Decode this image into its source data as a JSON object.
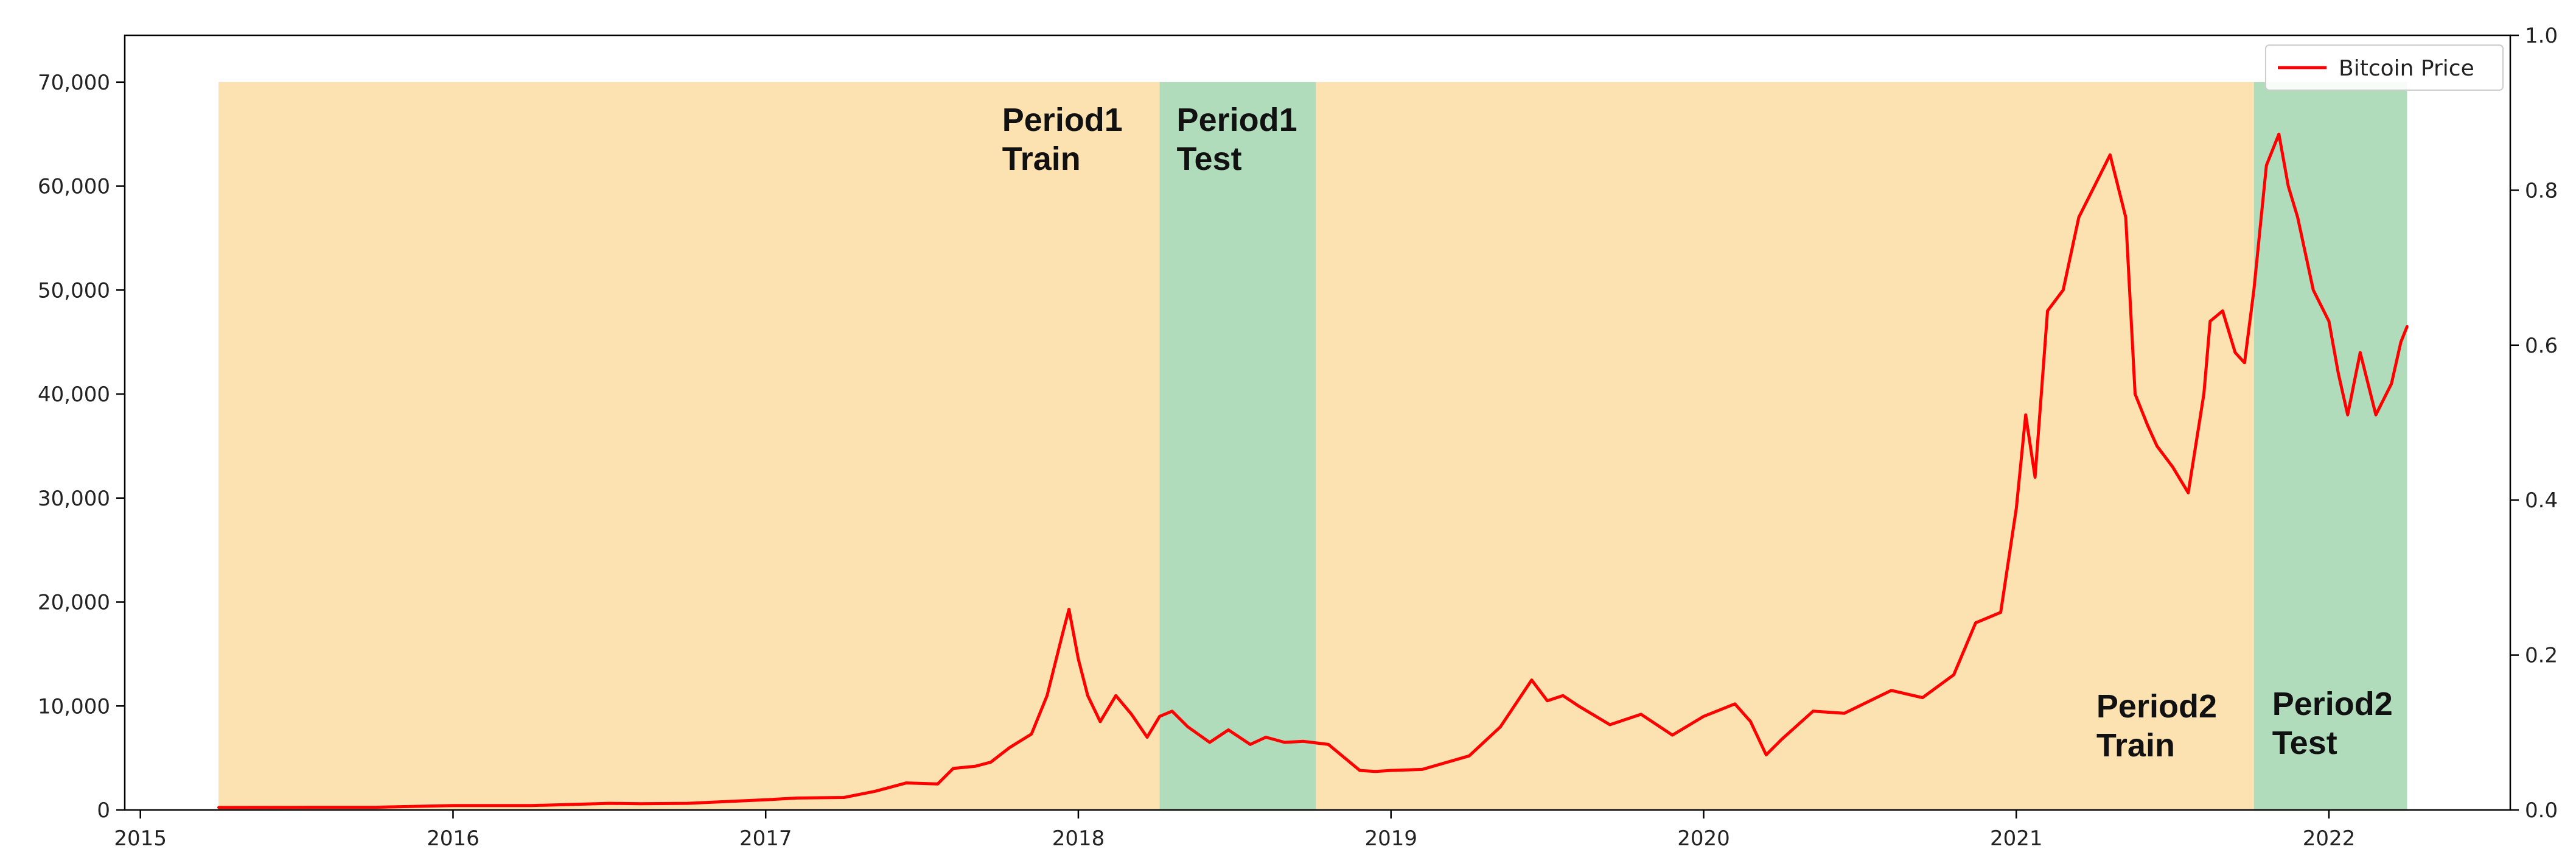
{
  "chart_data": {
    "type": "line",
    "title": "",
    "xlabel": "",
    "ylabel": "",
    "xlim": [
      2014.95,
      2022.58
    ],
    "ylim": [
      0,
      74500
    ],
    "y2lim": [
      0,
      1.0
    ],
    "grid": false,
    "legend": {
      "placement": "top-right",
      "entries": [
        "Bitcoin Price"
      ]
    },
    "colors": {
      "line": "#ff0000",
      "train": "#fde2b1",
      "test": "#b1dcbc",
      "axis": "#000000"
    },
    "x_ticks": [
      {
        "value": 2015,
        "label": "2015"
      },
      {
        "value": 2016,
        "label": "2016"
      },
      {
        "value": 2017,
        "label": "2017"
      },
      {
        "value": 2018,
        "label": "2018"
      },
      {
        "value": 2019,
        "label": "2019"
      },
      {
        "value": 2020,
        "label": "2020"
      },
      {
        "value": 2021,
        "label": "2021"
      },
      {
        "value": 2022,
        "label": "2022"
      }
    ],
    "y_ticks": [
      {
        "value": 0,
        "label": "0"
      },
      {
        "value": 10000,
        "label": "10,000"
      },
      {
        "value": 20000,
        "label": "20,000"
      },
      {
        "value": 30000,
        "label": "30,000"
      },
      {
        "value": 40000,
        "label": "40,000"
      },
      {
        "value": 50000,
        "label": "50,000"
      },
      {
        "value": 60000,
        "label": "60,000"
      },
      {
        "value": 70000,
        "label": "70,000"
      }
    ],
    "y2_ticks": [
      {
        "value": 0.0,
        "label": "0.0"
      },
      {
        "value": 0.2,
        "label": "0.2"
      },
      {
        "value": 0.4,
        "label": "0.4"
      },
      {
        "value": 0.6,
        "label": "0.6"
      },
      {
        "value": 0.8,
        "label": "0.8"
      },
      {
        "value": 1.0,
        "label": "1.0"
      }
    ],
    "regions": [
      {
        "kind": "train",
        "x_start": 2015.25,
        "x_end": 2018.26,
        "y_top": 70000,
        "label_lines": [
          "Period1",
          "Train"
        ],
        "label_anchor": "upper-right"
      },
      {
        "kind": "test",
        "x_start": 2018.26,
        "x_end": 2018.76,
        "y_top": 70000,
        "label_lines": [
          "Period1",
          "Test"
        ],
        "label_anchor": "upper-left"
      },
      {
        "kind": "train",
        "x_start": 2018.76,
        "x_end": 2021.76,
        "y_top": 70000,
        "label_lines": [
          "Period2",
          "Train"
        ],
        "label_anchor": "lower-right"
      },
      {
        "kind": "test",
        "x_start": 2021.76,
        "x_end": 2022.25,
        "y_top": 70000,
        "label_lines": [
          "Period2",
          "Test"
        ],
        "label_anchor": "lower-left"
      }
    ],
    "series": [
      {
        "name": "Bitcoin Price",
        "x": [
          2015.25,
          2015.5,
          2015.75,
          2016.0,
          2016.25,
          2016.5,
          2016.6,
          2016.75,
          2017.0,
          2017.1,
          2017.25,
          2017.35,
          2017.45,
          2017.55,
          2017.6,
          2017.67,
          2017.72,
          2017.78,
          2017.85,
          2017.9,
          2017.95,
          2017.97,
          2018.0,
          2018.03,
          2018.07,
          2018.12,
          2018.17,
          2018.22,
          2018.26,
          2018.3,
          2018.35,
          2018.42,
          2018.48,
          2018.55,
          2018.6,
          2018.66,
          2018.72,
          2018.8,
          2018.9,
          2018.95,
          2019.0,
          2019.1,
          2019.25,
          2019.35,
          2019.45,
          2019.5,
          2019.55,
          2019.6,
          2019.7,
          2019.8,
          2019.9,
          2020.0,
          2020.1,
          2020.15,
          2020.2,
          2020.25,
          2020.35,
          2020.45,
          2020.6,
          2020.7,
          2020.8,
          2020.87,
          2020.95,
          2021.0,
          2021.03,
          2021.06,
          2021.1,
          2021.15,
          2021.2,
          2021.25,
          2021.3,
          2021.35,
          2021.38,
          2021.42,
          2021.45,
          2021.5,
          2021.55,
          2021.6,
          2021.62,
          2021.66,
          2021.7,
          2021.73,
          2021.76,
          2021.8,
          2021.84,
          2021.87,
          2021.9,
          2021.95,
          2022.0,
          2022.03,
          2022.06,
          2022.1,
          2022.15,
          2022.2,
          2022.23,
          2022.25
        ],
        "y": [
          240,
          250,
          260,
          430,
          420,
          640,
          600,
          640,
          980,
          1150,
          1200,
          1800,
          2600,
          2500,
          4000,
          4200,
          4600,
          6000,
          7300,
          11000,
          17000,
          19300,
          14500,
          11000,
          8500,
          11000,
          9200,
          7000,
          9000,
          9500,
          8000,
          6500,
          7700,
          6300,
          7000,
          6500,
          6600,
          6300,
          3800,
          3700,
          3800,
          3900,
          5200,
          8000,
          12500,
          10500,
          11000,
          10000,
          8200,
          9200,
          7200,
          9000,
          10200,
          8500,
          5300,
          6800,
          9500,
          9300,
          11500,
          10800,
          13000,
          18000,
          19000,
          29000,
          38000,
          32000,
          48000,
          50000,
          57000,
          60000,
          63000,
          57000,
          40000,
          37000,
          35000,
          33000,
          30500,
          40000,
          47000,
          48000,
          44000,
          43000,
          50000,
          62000,
          65000,
          60000,
          57000,
          50000,
          47000,
          42000,
          38000,
          44000,
          38000,
          41000,
          45000,
          46500
        ]
      }
    ]
  }
}
